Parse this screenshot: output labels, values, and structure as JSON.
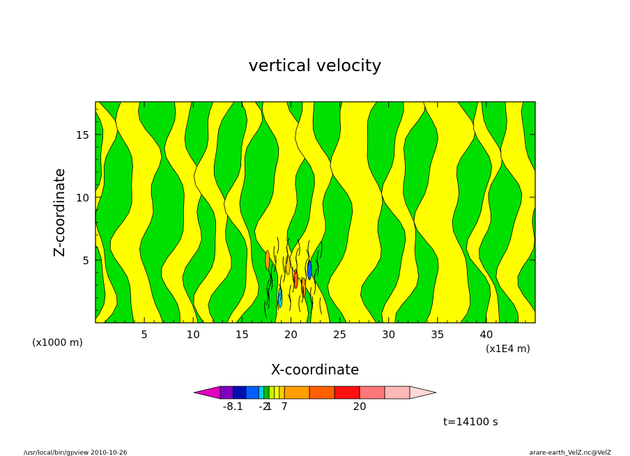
{
  "chart_data": {
    "type": "heatmap",
    "title": "vertical velocity",
    "xlabel": "X-coordinate",
    "ylabel": "Z-coordinate",
    "x_unit_left": "(x1000 m)",
    "x_unit_right": "(x1E4 m)",
    "xlim": [
      0,
      45
    ],
    "ylim": [
      0,
      17.6
    ],
    "x_ticks": [
      "5",
      "10",
      "15",
      "20",
      "25",
      "30",
      "35",
      "40"
    ],
    "y_ticks": [
      "5",
      "10",
      "15"
    ],
    "legend": {
      "placement": "bottom",
      "colors": [
        "#e000c0",
        "#8000c0",
        "#0010b0",
        "#0060ff",
        "#00d0ff",
        "#00c000",
        "#c8f000",
        "#ffff00",
        "#ffd000",
        "#ffa000",
        "#ff6000",
        "#ff1010",
        "#ff7878",
        "#ffb8b8",
        "#ffd8d8"
      ],
      "labels": [
        {
          "text": "-8.1",
          "boundary": 1
        },
        {
          "text": "-2",
          "boundary": 4
        },
        {
          "text": "1",
          "boundary": 5
        },
        {
          "text": "7",
          "boundary": 8
        },
        {
          "text": "20",
          "boundary": 11
        }
      ]
    },
    "field_colors": {
      "positive": "#ffff00",
      "negative": "#00e000",
      "contour": "#000000"
    },
    "time_label": "t=14100 s"
  },
  "footer": {
    "left": "/usr/local/bin/gpview  2010-10-26",
    "right": "arare-earth_VelZ.nc@VelZ"
  }
}
